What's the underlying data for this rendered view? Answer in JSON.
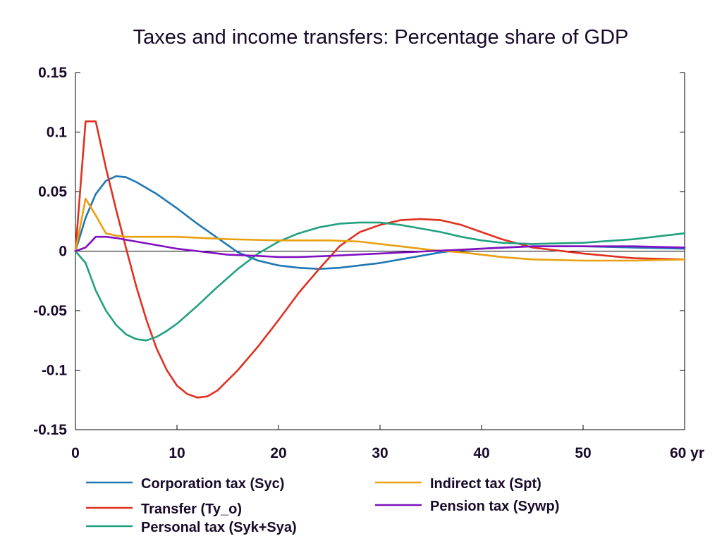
{
  "chart_data": {
    "type": "line",
    "title": "Taxes and income transfers: Percentage share of GDP",
    "xlabel": "",
    "ylabel": "",
    "x_unit_label": "yr",
    "xlim": [
      0,
      60
    ],
    "ylim": [
      -0.15,
      0.15
    ],
    "x_ticks": [
      0,
      10,
      20,
      30,
      40,
      50,
      60
    ],
    "x_tick_labels": [
      "0",
      "10",
      "20",
      "30",
      "40",
      "50",
      "60 yr"
    ],
    "y_ticks": [
      0.15,
      0.1,
      0.05,
      0,
      -0.05,
      -0.1,
      -0.15
    ],
    "y_tick_labels": [
      "0.15",
      "0.1",
      "0.05",
      "0",
      "-0.05",
      "-0.1",
      "-0.15"
    ],
    "grid": false,
    "zero_line": true,
    "legend_position": "bottom",
    "series": [
      {
        "name": "Corporation tax (Syc)",
        "color": "#1f77b4",
        "x": [
          0,
          1,
          2,
          3,
          4,
          5,
          6,
          8,
          10,
          12,
          14,
          16,
          18,
          20,
          22,
          24,
          26,
          28,
          30,
          32,
          34,
          36,
          38,
          40,
          42,
          45,
          50,
          55,
          60
        ],
        "y": [
          0,
          0.028,
          0.048,
          0.059,
          0.063,
          0.062,
          0.058,
          0.048,
          0.036,
          0.023,
          0.011,
          -0.001,
          -0.008,
          -0.012,
          -0.014,
          -0.015,
          -0.014,
          -0.012,
          -0.01,
          -0.007,
          -0.004,
          -0.001,
          0.001,
          0.002,
          0.003,
          0.004,
          0.004,
          0.003,
          0.002
        ]
      },
      {
        "name": "Transfer (Ty_o)",
        "color": "#e03020",
        "x": [
          0,
          1,
          2,
          3,
          4,
          5,
          6,
          7,
          8,
          9,
          10,
          11,
          12,
          13,
          14,
          16,
          18,
          20,
          22,
          24,
          26,
          28,
          30,
          32,
          34,
          36,
          38,
          40,
          42,
          45,
          50,
          55,
          60
        ],
        "y": [
          0,
          0.109,
          0.109,
          0.07,
          0.035,
          0.002,
          -0.03,
          -0.058,
          -0.082,
          -0.1,
          -0.113,
          -0.12,
          -0.123,
          -0.122,
          -0.117,
          -0.1,
          -0.08,
          -0.058,
          -0.035,
          -0.015,
          0.004,
          0.016,
          0.022,
          0.026,
          0.027,
          0.026,
          0.022,
          0.016,
          0.01,
          0.003,
          -0.002,
          -0.006,
          -0.007
        ]
      },
      {
        "name": "Personal tax (Syk+Sya)",
        "color": "#20a080",
        "x": [
          0,
          1,
          2,
          3,
          4,
          5,
          6,
          7,
          8,
          9,
          10,
          12,
          14,
          16,
          18,
          20,
          22,
          24,
          26,
          28,
          30,
          32,
          34,
          36,
          38,
          40,
          42,
          45,
          50,
          55,
          60
        ],
        "y": [
          0,
          -0.01,
          -0.033,
          -0.05,
          -0.062,
          -0.07,
          -0.074,
          -0.075,
          -0.072,
          -0.067,
          -0.061,
          -0.046,
          -0.03,
          -0.015,
          -0.002,
          0.008,
          0.015,
          0.02,
          0.023,
          0.024,
          0.024,
          0.022,
          0.019,
          0.016,
          0.012,
          0.009,
          0.007,
          0.006,
          0.007,
          0.01,
          0.015
        ]
      },
      {
        "name": "Indirect tax (Spt)",
        "color": "#e8a010",
        "x": [
          0,
          1,
          2,
          3,
          4,
          5,
          10,
          15,
          20,
          25,
          28,
          30,
          32,
          35,
          38,
          40,
          42,
          45,
          50,
          55,
          60
        ],
        "y": [
          0,
          0.044,
          0.03,
          0.015,
          0.013,
          0.012,
          0.012,
          0.01,
          0.009,
          0.009,
          0.008,
          0.006,
          0.004,
          0.001,
          -0.001,
          -0.003,
          -0.005,
          -0.007,
          -0.008,
          -0.008,
          -0.007
        ]
      },
      {
        "name": "Pension tax (Sywp)",
        "color": "#8010c0",
        "x": [
          0,
          1,
          2,
          3,
          4,
          6,
          8,
          10,
          12,
          15,
          18,
          20,
          22,
          25,
          30,
          35,
          40,
          45,
          50,
          55,
          60
        ],
        "y": [
          0,
          0.003,
          0.012,
          0.012,
          0.011,
          0.008,
          0.005,
          0.002,
          0,
          -0.003,
          -0.004,
          -0.005,
          -0.005,
          -0.004,
          -0.002,
          0,
          0.002,
          0.004,
          0.004,
          0.004,
          0.003
        ]
      }
    ]
  }
}
